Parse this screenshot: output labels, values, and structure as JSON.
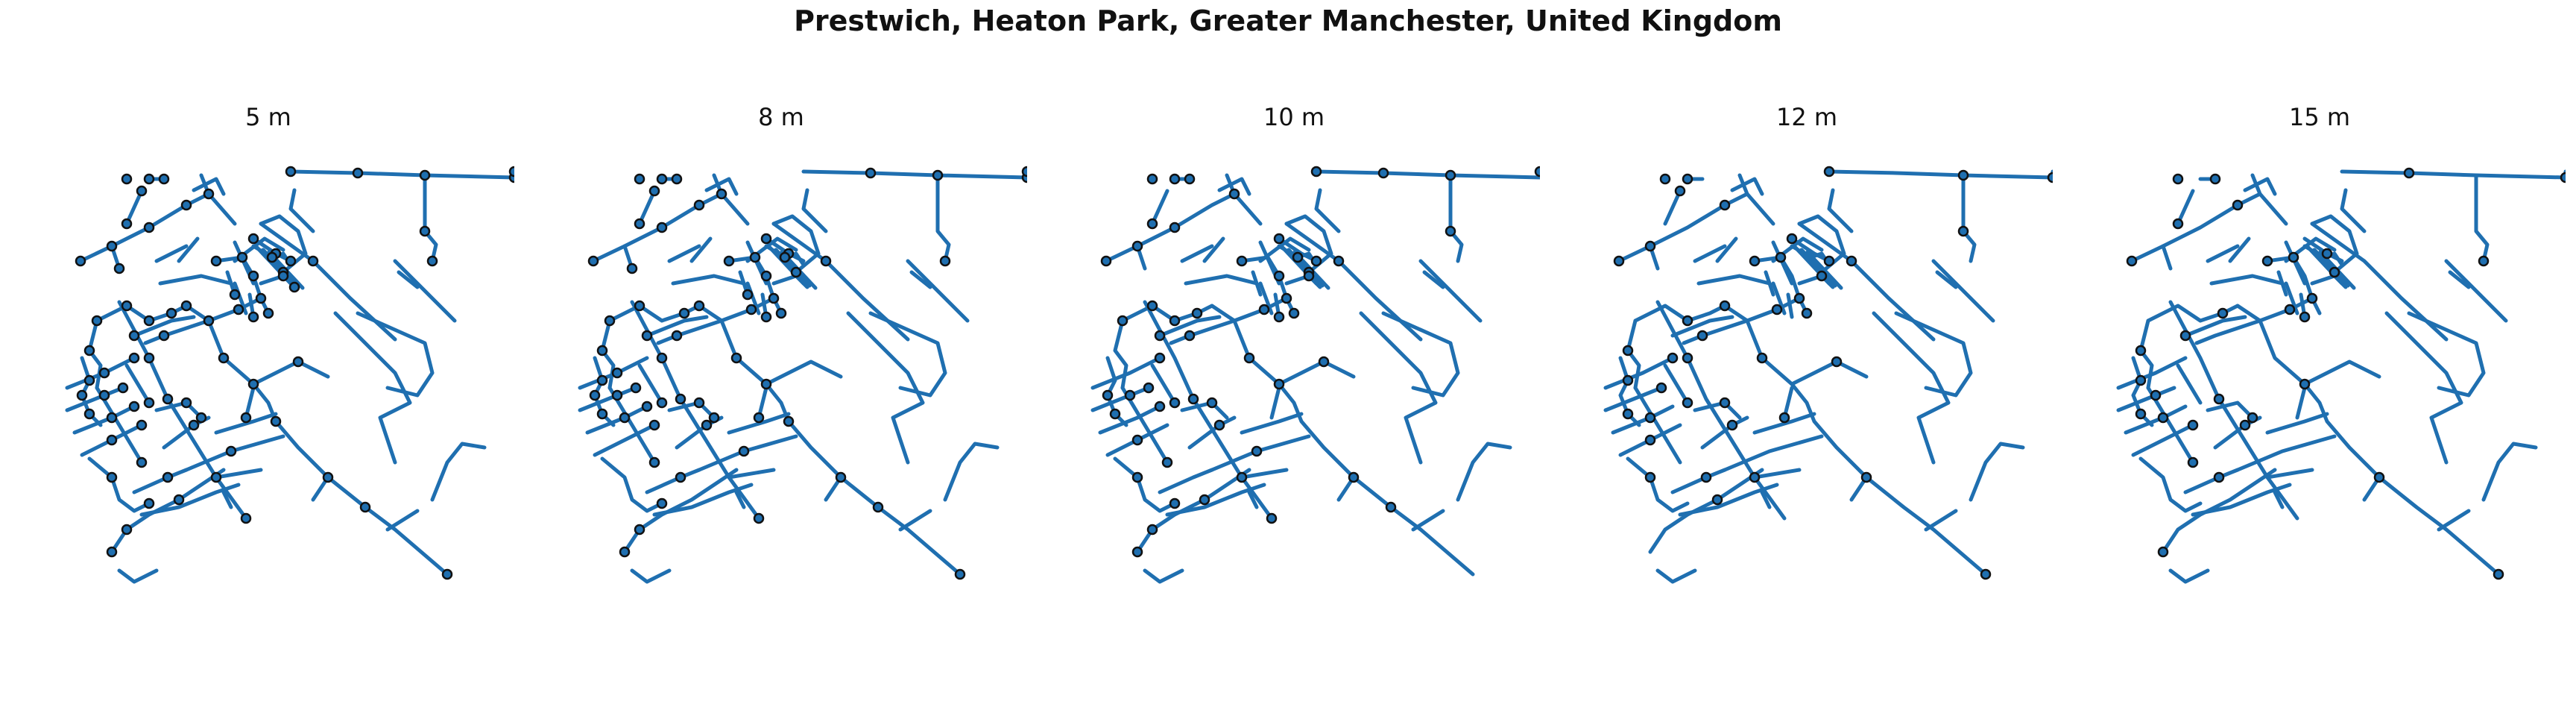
{
  "title": "Prestwich, Heaton Park, Greater Manchester, United Kingdom",
  "colors": {
    "street": "#1f6fb0",
    "node_fill": "#1f6fb0",
    "node_edge": "#111111"
  },
  "panels": [
    {
      "label": "5 m",
      "node_count": 78
    },
    {
      "label": "8 m",
      "node_count": 64
    },
    {
      "label": "10 m",
      "node_count": 56
    },
    {
      "label": "12 m",
      "node_count": 42
    },
    {
      "label": "15 m",
      "node_count": 32
    }
  ]
}
